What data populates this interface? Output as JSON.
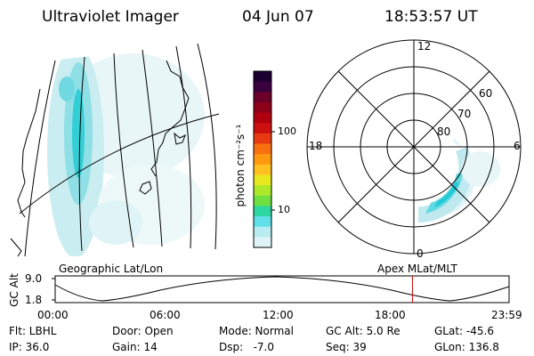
{
  "header": {
    "instrument": "Ultraviolet Imager",
    "date": "04 Jun 07",
    "time": "18:53:57 UT"
  },
  "colorbar": {
    "label": "photon cm⁻²s⁻¹",
    "ticks": [
      "100",
      "10"
    ],
    "colors": [
      "#1a0030",
      "#3b0040",
      "#6a0028",
      "#8c0018",
      "#b00010",
      "#cc1010",
      "#e83a10",
      "#f87010",
      "#ff9a10",
      "#ffc020",
      "#e8e820",
      "#aee82a",
      "#6fe040",
      "#2cd8a0",
      "#60e0e8",
      "#b8ecf0",
      "#dff4f6"
    ]
  },
  "polar": {
    "mlt_labels": {
      "top": "12",
      "left": "18",
      "right": "6",
      "bottom": "0"
    },
    "lat_labels": [
      "60",
      "70",
      "80"
    ]
  },
  "projection_labels": {
    "left": "Geographic Lat/Lon",
    "right": "Apex MLat/MLT"
  },
  "altitude_plot": {
    "ylabel": "GC Alt",
    "yticks": [
      "9.0",
      "1.8"
    ],
    "xticks": [
      "00:00",
      "06:00",
      "12:00",
      "18:00",
      "23:59"
    ],
    "current_time_fraction": 0.787
  },
  "info": {
    "flt": "Flt: LBHL",
    "ip": "IP: 36.0",
    "door": "Door: Open",
    "gain": "Gain: 14",
    "mode": "Mode: Normal",
    "dsp": "Dsp:   -7.0",
    "gcalt": "GC Alt: 5.0 Re",
    "seq": "Seq: 39",
    "glat": "GLat: -45.6",
    "glon": "GLon: 136.8"
  }
}
